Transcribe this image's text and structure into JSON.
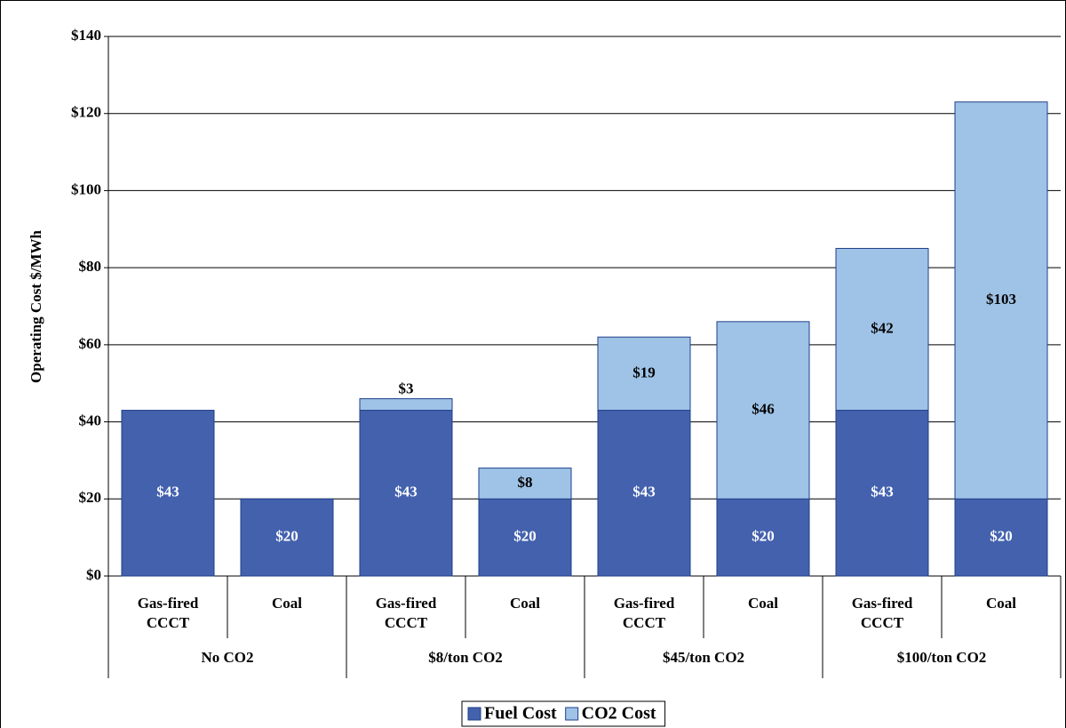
{
  "chart_data": {
    "type": "stacked_bar",
    "y_label": "Operating Cost $/MWh",
    "categories": [
      "Gas-fired CCCT",
      "Coal",
      "Gas-fired CCCT",
      "Coal",
      "Gas-fired CCCT",
      "Coal",
      "Gas-fired CCCT",
      "Coal"
    ],
    "category_groups": [
      "No CO2",
      "$8/ton CO2",
      "$45/ton CO2",
      "$100/ton CO2"
    ],
    "series": [
      {
        "name": "Fuel Cost",
        "color": "#4361ad",
        "label_color": "#ffffff",
        "values": [
          43,
          20,
          43,
          20,
          43,
          20,
          43,
          20
        ],
        "value_labels": [
          "$43",
          "$20",
          "$43",
          "$20",
          "$43",
          "$20",
          "$43",
          "$20"
        ]
      },
      {
        "name": "CO2 Cost",
        "color": "#9fc3e7",
        "label_color": "#000000",
        "values": [
          null,
          null,
          3,
          8,
          19,
          46,
          42,
          103
        ],
        "value_labels": [
          null,
          null,
          "$3",
          "$8",
          "$19",
          "$46",
          "$42",
          "$103"
        ]
      }
    ],
    "ylim": [
      0,
      140
    ],
    "yticks": [
      {
        "value": 0,
        "label": "$0"
      },
      {
        "value": 20,
        "label": "$20"
      },
      {
        "value": 40,
        "label": "$40"
      },
      {
        "value": 60,
        "label": "$60"
      },
      {
        "value": 80,
        "label": "$80"
      },
      {
        "value": 100,
        "label": "$100"
      },
      {
        "value": 120,
        "label": "$120"
      },
      {
        "value": 140,
        "label": "$140"
      }
    ],
    "grid": true,
    "legend": "bottom"
  }
}
